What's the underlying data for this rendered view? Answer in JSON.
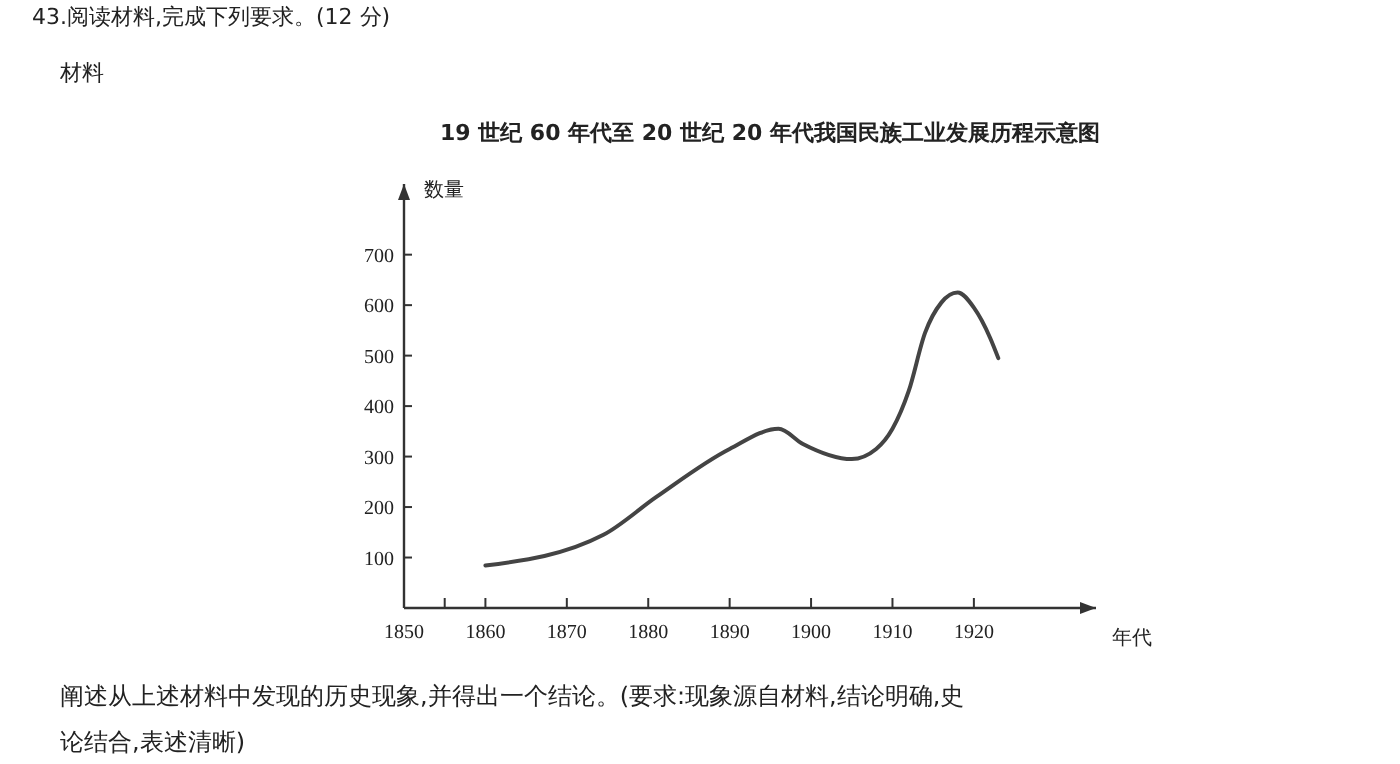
{
  "chart_data": {
    "type": "line",
    "title": "19 世纪 60 年代至 20 世纪 20 年代我国民族工业发展历程示意图",
    "xlabel": "年代",
    "ylabel": "数量",
    "annotations": [
      "43.阅读材料,完成下列要求。(12 分)",
      "材料",
      "阐述从上述材料中发现的历史现象,并得出一个结论。(要求:现象源自材料,结论明确,史",
      "论结合,表述清晰)"
    ],
    "x": [
      1860,
      1874.5,
      1881,
      1890,
      1896,
      1899,
      1905,
      1908,
      1910,
      1912,
      1914,
      1916,
      1918,
      1920,
      1922,
      1923
    ],
    "series": [
      {
        "color": "#444444",
        "values": [
          84,
          145,
          220,
          315,
          355,
          325,
          295,
          315,
          355,
          430,
          545,
          605,
          625,
          595,
          535,
          495
        ]
      }
    ],
    "xlim": [
      1850,
      1935
    ],
    "xticks": [
      1850,
      {
        "value": 1855,
        "label": null
      },
      1860,
      1870,
      1880,
      1890,
      1900,
      1910,
      1920
    ],
    "ylim": [
      0,
      840
    ],
    "yticks": [
      100,
      200,
      300,
      400,
      500,
      600,
      700
    ],
    "grid": false,
    "line_style": "solid"
  }
}
